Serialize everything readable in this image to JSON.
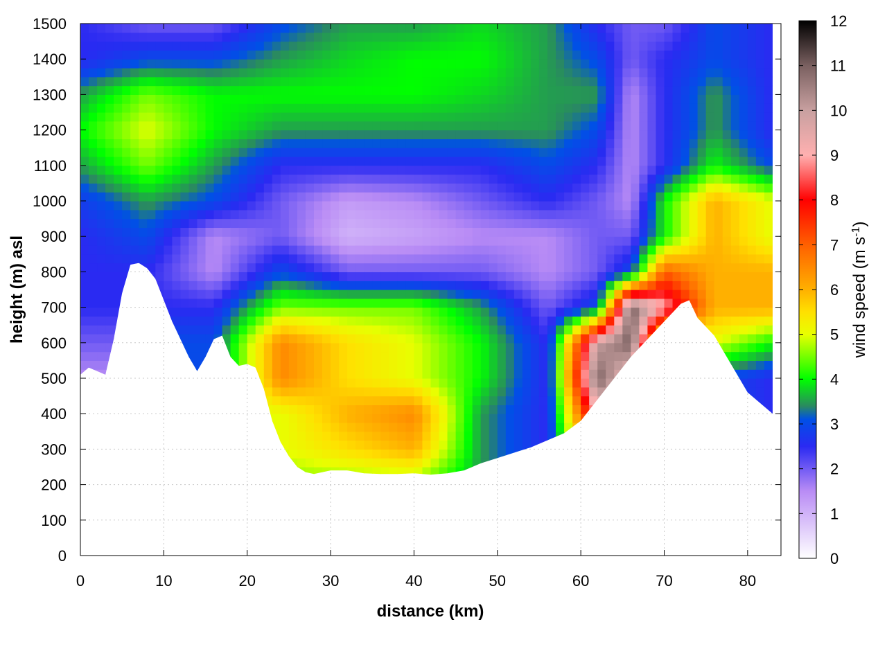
{
  "chart_data": {
    "type": "heatmap",
    "title": "",
    "xlabel": "distance (km)",
    "ylabel": "height (m) asl",
    "xlim": [
      0,
      84
    ],
    "ylim": [
      0,
      1500
    ],
    "x_ticks": [
      "0",
      "10",
      "20",
      "30",
      "40",
      "50",
      "60",
      "70",
      "80"
    ],
    "y_ticks": [
      "0",
      "100",
      "200",
      "300",
      "400",
      "500",
      "600",
      "700",
      "800",
      "900",
      "1000",
      "1100",
      "1200",
      "1300",
      "1400",
      "1500"
    ],
    "grid": true,
    "colorbar": {
      "label_main": "wind speed (m s",
      "label_sup": "-1",
      "label_close": ")",
      "range": [
        0,
        12
      ],
      "ticks": [
        "0",
        "1",
        "2",
        "3",
        "4",
        "5",
        "6",
        "7",
        "8",
        "9",
        "10",
        "11",
        "12"
      ],
      "stops": [
        {
          "v": 0,
          "color": "#ffffff"
        },
        {
          "v": 1.5,
          "color": "#b98cf5"
        },
        {
          "v": 2.5,
          "color": "#2a2af2"
        },
        {
          "v": 3.1,
          "color": "#0050e6"
        },
        {
          "v": 3.4,
          "color": "#2a8a60"
        },
        {
          "v": 4.0,
          "color": "#00ff00"
        },
        {
          "v": 5.0,
          "color": "#e8ff00"
        },
        {
          "v": 5.5,
          "color": "#ffe000"
        },
        {
          "v": 6.0,
          "color": "#ffb000"
        },
        {
          "v": 7.0,
          "color": "#ff6000"
        },
        {
          "v": 8.0,
          "color": "#ff0000"
        },
        {
          "v": 9.0,
          "color": "#ffb0b0"
        },
        {
          "v": 10.0,
          "color": "#c8a0a0"
        },
        {
          "v": 11.0,
          "color": "#7a6060"
        },
        {
          "v": 12.0,
          "color": "#000000"
        }
      ]
    },
    "terrain": {
      "x_km": [
        0,
        1,
        2,
        3,
        4,
        5,
        6,
        7,
        8,
        9,
        10,
        11,
        12,
        13,
        14,
        15,
        16,
        17,
        18,
        19,
        20,
        21,
        22,
        23,
        24,
        25,
        26,
        27,
        28,
        30,
        32,
        34,
        36,
        38,
        40,
        42,
        44,
        46,
        48,
        50,
        52,
        54,
        56,
        57,
        58,
        60,
        62,
        64,
        66,
        68,
        70,
        72,
        73,
        74,
        76,
        78,
        80,
        82,
        83
      ],
      "height_m": [
        510,
        530,
        520,
        510,
        610,
        740,
        820,
        825,
        810,
        780,
        720,
        660,
        610,
        560,
        520,
        560,
        610,
        620,
        560,
        535,
        540,
        530,
        470,
        380,
        320,
        280,
        250,
        235,
        230,
        240,
        240,
        232,
        230,
        230,
        232,
        228,
        232,
        240,
        260,
        275,
        290,
        305,
        325,
        335,
        345,
        380,
        440,
        500,
        560,
        610,
        660,
        710,
        720,
        670,
        620,
        540,
        460,
        420,
        400
      ]
    },
    "field_cells": {
      "x_km": [
        0,
        8,
        16,
        24,
        32,
        40,
        48,
        56,
        62,
        66,
        70,
        76,
        83
      ],
      "height_m": [
        200,
        300,
        400,
        500,
        600,
        700,
        800,
        900,
        1000,
        1100,
        1200,
        1300,
        1400,
        1500
      ],
      "wind_speed": [
        [
          null,
          null,
          null,
          4.5,
          4.5,
          4.5,
          3.5,
          2.5,
          2,
          2,
          2,
          null,
          null
        ],
        [
          null,
          null,
          null,
          5.0,
          5.5,
          6.0,
          3.5,
          2.5,
          7,
          2,
          2,
          null,
          null
        ],
        [
          null,
          null,
          null,
          5.0,
          6.0,
          6.5,
          3.5,
          2.5,
          9,
          9,
          2,
          null,
          null
        ],
        [
          1.5,
          null,
          3.0,
          6.5,
          5.5,
          5.0,
          4.0,
          2.5,
          11,
          9,
          2,
          3,
          2.5
        ],
        [
          2.0,
          null,
          3.0,
          6.5,
          5.5,
          5.0,
          4.0,
          2.5,
          10,
          11,
          4,
          5,
          4
        ],
        [
          2.5,
          null,
          2.5,
          4.5,
          4.5,
          4.5,
          3.5,
          2.0,
          3,
          11,
          9,
          6,
          6
        ],
        [
          2.5,
          2.5,
          1.5,
          3.0,
          2.0,
          2.0,
          2.0,
          1.5,
          2,
          3,
          7,
          6,
          6
        ],
        [
          2.5,
          3.0,
          1.5,
          2.0,
          1.0,
          1.2,
          1.5,
          1.5,
          2,
          2,
          4,
          6,
          5
        ],
        [
          2.8,
          3.5,
          3.0,
          2.0,
          1.3,
          1.5,
          2.0,
          2.5,
          2,
          1.5,
          4,
          6,
          5
        ],
        [
          3.5,
          4.5,
          3.5,
          2.5,
          2.5,
          2.5,
          2.5,
          3.0,
          2.5,
          1.5,
          2.5,
          4,
          3
        ],
        [
          4.0,
          5.0,
          4.0,
          3.5,
          3.5,
          3.5,
          3.5,
          3.5,
          3.0,
          1.5,
          2.5,
          3.5,
          2.5
        ],
        [
          3.5,
          4.5,
          4.0,
          4.0,
          4.0,
          4.0,
          3.8,
          3.5,
          3.5,
          1.5,
          2.5,
          3.5,
          2.5
        ],
        [
          2.5,
          3.0,
          3.0,
          3.5,
          3.8,
          4.0,
          4.0,
          3.5,
          3.0,
          2.0,
          2.5,
          3.0,
          2.5
        ],
        [
          2.5,
          2.0,
          2.0,
          3.0,
          3.5,
          3.5,
          3.8,
          3.5,
          2.5,
          2.0,
          2.0,
          3.0,
          2.5
        ]
      ]
    }
  }
}
